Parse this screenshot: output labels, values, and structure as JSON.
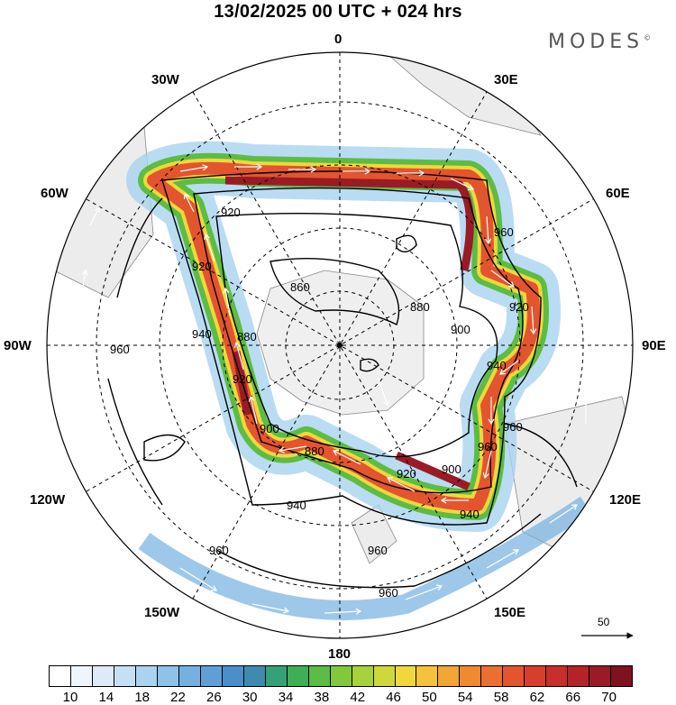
{
  "title": "13/02/2025  00 UTC  + 024 hrs",
  "brand": "MODES",
  "brand_mark": "©",
  "longitude_labels": {
    "lon_0": "0",
    "lon_30e": "30E",
    "lon_60e": "60E",
    "lon_90e": "90E",
    "lon_120e": "120E",
    "lon_150e": "150E",
    "lon_180": "180",
    "lon_150w": "150W",
    "lon_120w": "120W",
    "lon_90w": "90W",
    "lon_60w": "60W",
    "lon_30w": "30W"
  },
  "contours": [
    {
      "label": "860",
      "color": "#000000"
    },
    {
      "label": "880",
      "color": "#000000"
    },
    {
      "label": "900",
      "color": "#000000"
    },
    {
      "label": "920",
      "color": "#000000"
    },
    {
      "label": "940",
      "color": "#000000"
    },
    {
      "label": "960",
      "color": "#000000"
    }
  ],
  "contour_labels": {
    "c860a": "860",
    "c880a": "880",
    "c880b": "880",
    "c880c": "880",
    "c900a": "900",
    "c900b": "900",
    "c900c": "900",
    "c920a": "920",
    "c920b": "920",
    "c920c": "920",
    "c920d": "920",
    "c920e": "920",
    "c940a": "940",
    "c940b": "940",
    "c940c": "940",
    "c940d": "940",
    "c960a": "960",
    "c960b": "960",
    "c960c": "960",
    "c960d": "960",
    "c960e": "960",
    "c960f": "960",
    "c960g": "960"
  },
  "reference_vector": "50",
  "colorbar": {
    "colors": [
      "#ffffff",
      "#eef6fc",
      "#dcebf7",
      "#c5e0f3",
      "#abd3ef",
      "#8fc2e8",
      "#74b1e0",
      "#5ea0d6",
      "#4a8fcc",
      "#3f8bb0",
      "#36a07a",
      "#3fae55",
      "#5cbc44",
      "#82c83c",
      "#a8d23a",
      "#cfd83a",
      "#f0d83c",
      "#f5c23a",
      "#f2a635",
      "#ee8a32",
      "#ea6f30",
      "#e3552e",
      "#d83e2c",
      "#c82f2c",
      "#b2242a",
      "#9a1b26",
      "#7f1220"
    ],
    "labels": [
      "10",
      "14",
      "18",
      "22",
      "26",
      "30",
      "34",
      "38",
      "42",
      "46",
      "50",
      "54",
      "58",
      "62",
      "66",
      "70"
    ]
  }
}
